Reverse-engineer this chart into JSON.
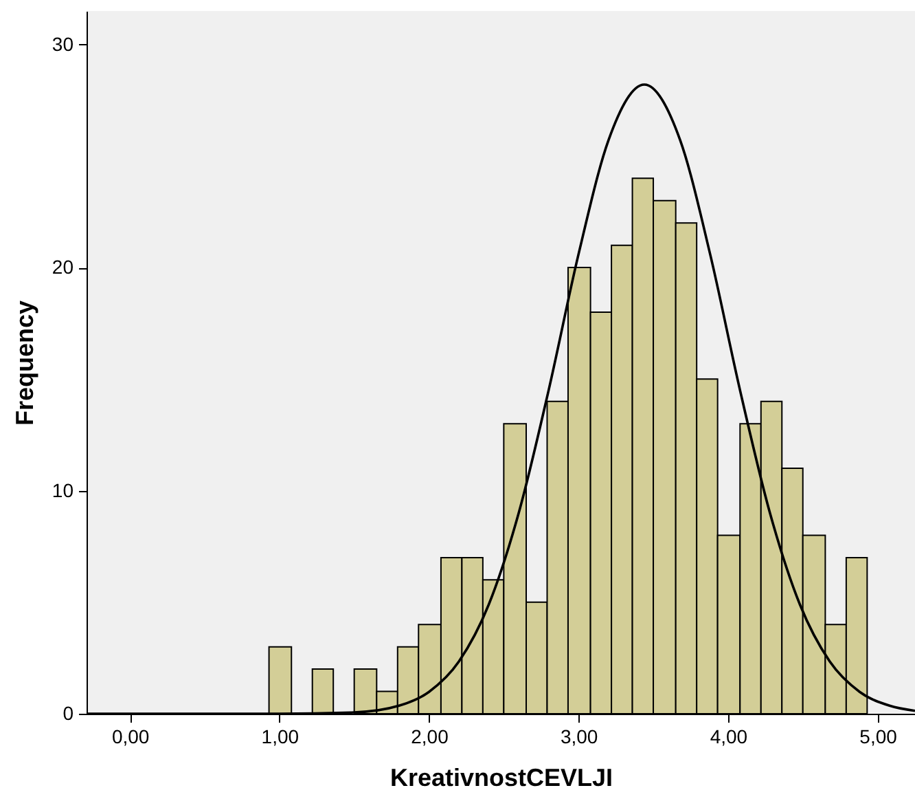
{
  "chart_data": {
    "type": "histogram",
    "xlabel": "KreativnostCEVLJI",
    "ylabel": "Frequency",
    "bins": [
      0.93,
      1.08,
      1.22,
      1.36,
      1.5,
      1.65,
      1.79,
      1.93,
      2.08,
      2.22,
      2.36,
      2.5,
      2.65,
      2.79,
      2.93,
      3.08,
      3.22,
      3.36,
      3.5,
      3.65,
      3.79,
      3.93,
      4.08,
      4.22,
      4.36,
      4.5,
      4.65,
      4.79,
      4.93
    ],
    "values": [
      3,
      0,
      2,
      0,
      2,
      1,
      3,
      4,
      7,
      7,
      6,
      13,
      5,
      14,
      20,
      18,
      21,
      24,
      23,
      22,
      15,
      8,
      13,
      14,
      11,
      8,
      4,
      7
    ],
    "color": "#d3ce97",
    "series": [
      {
        "type": "line",
        "color": "#000000",
        "x": [
          -0.29,
          1.0,
          1.5,
          1.8,
          2.0,
          2.2,
          2.4,
          2.6,
          2.8,
          3.0,
          3.2,
          3.44,
          3.68,
          3.88,
          4.08,
          4.28,
          4.48,
          4.68,
          4.88,
          5.08,
          5.25
        ],
        "values": [
          0,
          0,
          0.06,
          0.36,
          0.98,
          2.34,
          4.9,
          9.0,
          14.5,
          20.6,
          25.7,
          28.2,
          25.7,
          20.6,
          14.5,
          9.0,
          4.9,
          2.34,
          0.98,
          0.36,
          0.13
        ]
      }
    ],
    "xlim": [
      -0.29,
      5.25
    ],
    "ylim": [
      0,
      31.5
    ],
    "xticks": [
      {
        "value": 0,
        "label": "0,00"
      },
      {
        "value": 1,
        "label": "1,00"
      },
      {
        "value": 2,
        "label": "2,00"
      },
      {
        "value": 3,
        "label": "3,00"
      },
      {
        "value": 4,
        "label": "4,00"
      },
      {
        "value": 5,
        "label": "5,00"
      }
    ],
    "yticks": [
      0,
      10,
      20,
      30
    ],
    "grid": false
  }
}
